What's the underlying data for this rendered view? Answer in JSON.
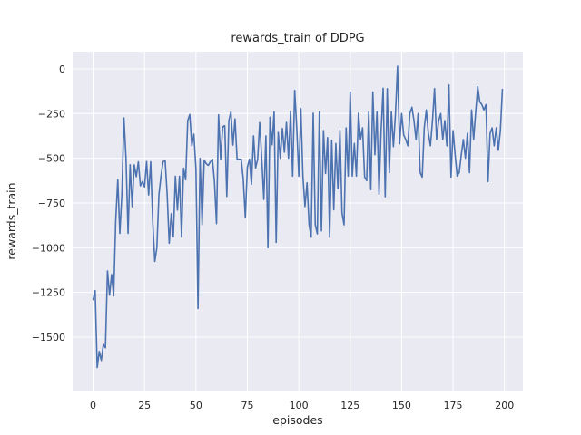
{
  "figure": {
    "title": "rewards_train of DDPG",
    "xlabel": "episodes",
    "ylabel": "rewards_train"
  },
  "chart_data": {
    "type": "line",
    "title": "rewards_train of DDPG",
    "xlabel": "episodes",
    "ylabel": "rewards_train",
    "legend": "none",
    "grid": true,
    "style": "seaborn-darkgrid",
    "plot_bg_color": "#eaeaf2",
    "grid_color": "#ffffff",
    "line_color": "#4c72b0",
    "text_color": "#262626",
    "x_ticks": [
      0,
      25,
      50,
      75,
      100,
      125,
      150,
      175,
      200
    ],
    "y_ticks": [
      0,
      -250,
      -500,
      -750,
      -1000,
      -1250,
      -1500
    ],
    "xlim": [
      -9.95,
      208.95
    ],
    "ylim": [
      -1804,
      96
    ],
    "series": [
      {
        "name": "rewards_train",
        "x_start": 0,
        "x_step": 1,
        "values": [
          -1290,
          -1240,
          -1670,
          -1580,
          -1630,
          -1540,
          -1560,
          -1130,
          -1265,
          -1150,
          -1270,
          -850,
          -620,
          -920,
          -700,
          -274,
          -500,
          -920,
          -536,
          -771,
          -537,
          -603,
          -520,
          -654,
          -630,
          -660,
          -518,
          -705,
          -520,
          -857,
          -1077,
          -1000,
          -705,
          -600,
          -520,
          -510,
          -700,
          -975,
          -810,
          -940,
          -600,
          -790,
          -600,
          -940,
          -555,
          -620,
          -290,
          -255,
          -430,
          -365,
          -560,
          -1340,
          -500,
          -870,
          -510,
          -530,
          -540,
          -520,
          -505,
          -630,
          -865,
          -257,
          -505,
          -324,
          -318,
          -713,
          -290,
          -240,
          -426,
          -280,
          -505,
          -505,
          -505,
          -615,
          -830,
          -550,
          -505,
          -645,
          -375,
          -555,
          -505,
          -300,
          -505,
          -730,
          -375,
          -1000,
          -270,
          -425,
          -240,
          -970,
          -355,
          -500,
          -333,
          -466,
          -299,
          -500,
          -237,
          -600,
          -120,
          -330,
          -600,
          -223,
          -600,
          -770,
          -637,
          -872,
          -941,
          -248,
          -872,
          -923,
          -240,
          -906,
          -345,
          -585,
          -384,
          -941,
          -400,
          -788,
          -417,
          -670,
          -345,
          -805,
          -872,
          -330,
          -600,
          -130,
          -600,
          -417,
          -600,
          -248,
          -395,
          -330,
          -605,
          -625,
          -240,
          -675,
          -130,
          -480,
          -240,
          -700,
          -350,
          -108,
          -715,
          -111,
          -580,
          -240,
          -435,
          -250,
          15,
          -420,
          -250,
          -370,
          -395,
          -430,
          -250,
          -215,
          -290,
          -395,
          -250,
          -580,
          -605,
          -330,
          -230,
          -360,
          -430,
          -290,
          -110,
          -395,
          -290,
          -250,
          -395,
          -290,
          -430,
          -90,
          -605,
          -345,
          -480,
          -600,
          -580,
          -480,
          -395,
          -500,
          -360,
          -580,
          -230,
          -395,
          -240,
          -100,
          -185,
          -200,
          -230,
          -200,
          -630,
          -360,
          -330,
          -430,
          -330,
          -455,
          -345,
          -115
        ]
      }
    ]
  }
}
